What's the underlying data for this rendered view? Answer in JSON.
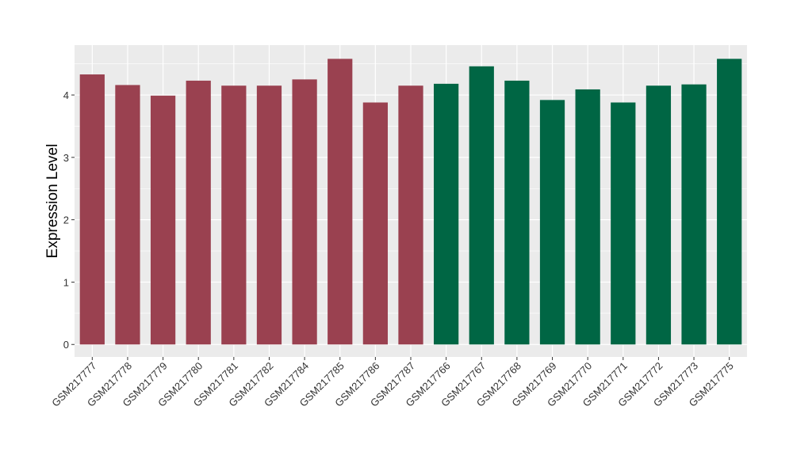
{
  "chart_data": {
    "type": "bar",
    "title": "",
    "xlabel": "",
    "ylabel": "Expression Level",
    "ylim": [
      -0.2,
      4.8
    ],
    "yticks": [
      0,
      1,
      2,
      3,
      4
    ],
    "grid": true,
    "legend": "none",
    "categories": [
      "GSM217777",
      "GSM217778",
      "GSM217779",
      "GSM217780",
      "GSM217781",
      "GSM217782",
      "GSM217784",
      "GSM217785",
      "GSM217786",
      "GSM217787",
      "GSM217766",
      "GSM217767",
      "GSM217768",
      "GSM217769",
      "GSM217770",
      "GSM217771",
      "GSM217772",
      "GSM217773",
      "GSM217775"
    ],
    "values": [
      4.33,
      4.16,
      3.99,
      4.23,
      4.15,
      4.15,
      4.25,
      4.58,
      3.88,
      4.15,
      4.18,
      4.46,
      4.23,
      3.92,
      4.09,
      3.88,
      4.15,
      4.17,
      4.58
    ],
    "group_index": [
      0,
      0,
      0,
      0,
      0,
      0,
      0,
      0,
      0,
      0,
      1,
      1,
      1,
      1,
      1,
      1,
      1,
      1,
      1
    ],
    "colors": [
      "#9a4150",
      "#006644"
    ],
    "panel_background": "#ebebeb",
    "grid_color": "#ffffff"
  }
}
